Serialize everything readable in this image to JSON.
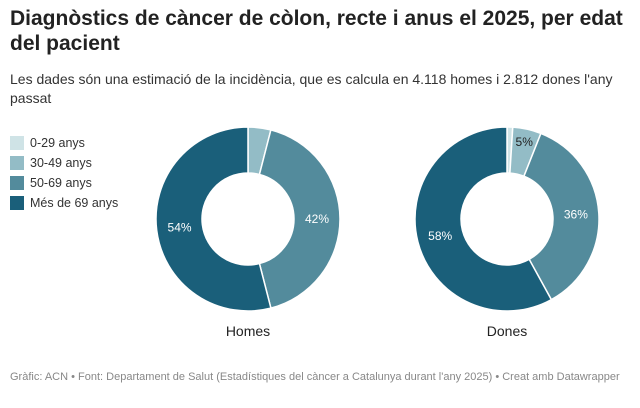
{
  "title": "Diagnòstics de càncer de còlon, recte i anus el 2025, per edat del pacient",
  "subtitle": "Les dades són una estimació de la incidència, que es calcula en 4.118 homes i 2.812 dones l'any passat",
  "footer": "Gràfic: ACN • Font: Departament de Salut (Estadístiques del càncer a Catalunya durant l'any 2025) • Creat amb Datawrapper",
  "chart_data": {
    "type": "pie",
    "variant": "donut",
    "legend_position": "left",
    "categories": [
      "0-29 anys",
      "30-49 anys",
      "50-69 anys",
      "Més de 69 anys"
    ],
    "colors": [
      "#cfe3e6",
      "#93bcc6",
      "#538b9c",
      "#1a5f7a"
    ],
    "series": [
      {
        "name": "Homes",
        "values": [
          0,
          4,
          42,
          54
        ],
        "labels": [
          "",
          "",
          "42%",
          "54%"
        ]
      },
      {
        "name": "Dones",
        "values": [
          1,
          5,
          36,
          58
        ],
        "labels": [
          "",
          "5%",
          "36%",
          "58%"
        ]
      }
    ]
  }
}
